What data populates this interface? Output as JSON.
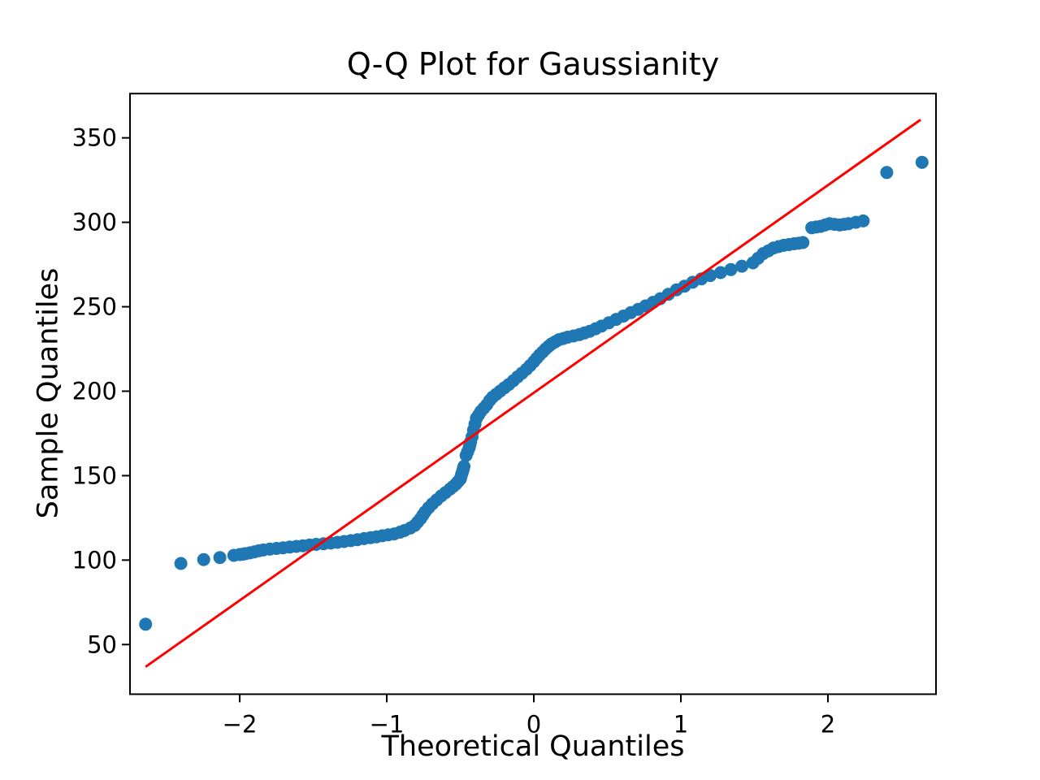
{
  "figure": {
    "background_color": "#ffffff"
  },
  "chart_data": {
    "type": "scatter",
    "title": "Q-Q Plot for Gaussianity",
    "xlabel": "Theoretical Quantiles",
    "ylabel": "Sample Quantiles",
    "xlim": [
      -2.746,
      2.735
    ],
    "ylim": [
      20.6,
      376.2
    ],
    "grid": false,
    "legend": "none",
    "x_ticks": {
      "values": [
        -2,
        -1,
        0,
        1,
        2
      ],
      "labels": [
        "−2",
        "−1",
        "0",
        "1",
        "2"
      ]
    },
    "y_ticks": {
      "values": [
        50,
        100,
        150,
        200,
        250,
        300,
        350
      ],
      "labels": [
        "50",
        "100",
        "150",
        "200",
        "250",
        "300",
        "350"
      ]
    },
    "marker_color": "#1f77b4",
    "line_color": "#ff0000",
    "axis_color": "#000000",
    "fit_line": {
      "x": [
        -2.64,
        2.63
      ],
      "y": [
        36.8,
        360.7
      ]
    },
    "series": [
      {
        "name": "sample-quantiles-vs-theoretical",
        "points": [
          [
            -2.64,
            62.0
          ],
          [
            -2.4,
            98.0
          ],
          [
            -2.245,
            100.3
          ],
          [
            -2.135,
            101.5
          ],
          [
            -2.04,
            102.8
          ],
          [
            -2.0,
            103.3
          ],
          [
            -1.98,
            103.5
          ],
          [
            -1.96,
            103.8
          ],
          [
            -1.93,
            104.3
          ],
          [
            -1.9,
            104.9
          ],
          [
            -1.87,
            105.5
          ],
          [
            -1.84,
            106.0
          ],
          [
            -1.795,
            106.5
          ],
          [
            -1.75,
            106.9
          ],
          [
            -1.705,
            107.3
          ],
          [
            -1.66,
            107.7
          ],
          [
            -1.615,
            108.1
          ],
          [
            -1.57,
            108.5
          ],
          [
            -1.525,
            108.9
          ],
          [
            -1.48,
            109.3
          ],
          [
            -1.43,
            109.7
          ],
          [
            -1.38,
            110.1
          ],
          [
            -1.335,
            110.5
          ],
          [
            -1.29,
            111.0
          ],
          [
            -1.245,
            111.5
          ],
          [
            -1.2,
            112.1
          ],
          [
            -1.155,
            112.7
          ],
          [
            -1.11,
            113.3
          ],
          [
            -1.07,
            113.8
          ],
          [
            -1.03,
            114.4
          ],
          [
            -0.99,
            115.0
          ],
          [
            -0.95,
            115.5
          ],
          [
            -0.91,
            116.5
          ],
          [
            -0.88,
            117.5
          ],
          [
            -0.84,
            119.0
          ],
          [
            -0.81,
            120.5
          ],
          [
            -0.79,
            122.5
          ],
          [
            -0.77,
            124.5
          ],
          [
            -0.755,
            126.5
          ],
          [
            -0.74,
            128.5
          ],
          [
            -0.715,
            131.0
          ],
          [
            -0.69,
            133.3
          ],
          [
            -0.66,
            135.6
          ],
          [
            -0.63,
            138.0
          ],
          [
            -0.6,
            140.0
          ],
          [
            -0.57,
            142.0
          ],
          [
            -0.55,
            143.5
          ],
          [
            -0.53,
            145.0
          ],
          [
            -0.515,
            146.5
          ],
          [
            -0.5,
            148.0
          ],
          [
            -0.495,
            149.5
          ],
          [
            -0.49,
            151.0
          ],
          [
            -0.485,
            152.3
          ],
          [
            -0.48,
            153.8
          ],
          [
            -0.475,
            155.5
          ],
          [
            -0.46,
            162.0
          ],
          [
            -0.45,
            164.2
          ],
          [
            -0.44,
            166.5
          ],
          [
            -0.435,
            168.2
          ],
          [
            -0.43,
            170.0
          ],
          [
            -0.42,
            173.0
          ],
          [
            -0.41,
            177.0
          ],
          [
            -0.4,
            180.5
          ],
          [
            -0.39,
            184.0
          ],
          [
            -0.375,
            186.0
          ],
          [
            -0.36,
            188.0
          ],
          [
            -0.34,
            190.0
          ],
          [
            -0.32,
            192.0
          ],
          [
            -0.3,
            194.5
          ],
          [
            -0.28,
            196.5
          ],
          [
            -0.255,
            198.2
          ],
          [
            -0.23,
            200.0
          ],
          [
            -0.2,
            202.0
          ],
          [
            -0.17,
            204.0
          ],
          [
            -0.14,
            206.2
          ],
          [
            -0.11,
            208.5
          ],
          [
            -0.08,
            210.7
          ],
          [
            -0.05,
            213.0
          ],
          [
            -0.025,
            215.2
          ],
          [
            0.0,
            217.5
          ],
          [
            0.02,
            219.5
          ],
          [
            0.04,
            221.5
          ],
          [
            0.06,
            223.2
          ],
          [
            0.08,
            225.0
          ],
          [
            0.1,
            226.5
          ],
          [
            0.12,
            228.0
          ],
          [
            0.145,
            229.2
          ],
          [
            0.17,
            230.5
          ],
          [
            0.2,
            231.2
          ],
          [
            0.23,
            232.0
          ],
          [
            0.27,
            232.7
          ],
          [
            0.31,
            233.5
          ],
          [
            0.345,
            234.5
          ],
          [
            0.38,
            235.5
          ],
          [
            0.42,
            237.0
          ],
          [
            0.46,
            238.5
          ],
          [
            0.51,
            240.5
          ],
          [
            0.56,
            242.5
          ],
          [
            0.61,
            244.5
          ],
          [
            0.66,
            246.5
          ],
          [
            0.71,
            248.5
          ],
          [
            0.76,
            250.5
          ],
          [
            0.81,
            252.6
          ],
          [
            0.86,
            254.8
          ],
          [
            0.915,
            257.4
          ],
          [
            0.97,
            260.0
          ],
          [
            1.025,
            262.2
          ],
          [
            1.08,
            264.5
          ],
          [
            1.14,
            266.5
          ],
          [
            1.2,
            268.5
          ],
          [
            1.27,
            270.2
          ],
          [
            1.34,
            272.0
          ],
          [
            1.415,
            274.0
          ],
          [
            1.49,
            276.0
          ],
          [
            1.525,
            278.7
          ],
          [
            1.56,
            281.5
          ],
          [
            1.595,
            283.1
          ],
          [
            1.63,
            284.8
          ],
          [
            1.665,
            285.6
          ],
          [
            1.7,
            286.4
          ],
          [
            1.735,
            286.8
          ],
          [
            1.77,
            287.3
          ],
          [
            1.8,
            287.6
          ],
          [
            1.83,
            288.0
          ],
          [
            1.89,
            296.8
          ],
          [
            1.92,
            297.2
          ],
          [
            1.95,
            297.6
          ],
          [
            1.98,
            298.4
          ],
          [
            2.01,
            299.2
          ],
          [
            2.045,
            298.8
          ],
          [
            2.08,
            298.4
          ],
          [
            2.11,
            298.8
          ],
          [
            2.14,
            299.2
          ],
          [
            2.19,
            300.0
          ],
          [
            2.24,
            300.8
          ],
          [
            2.4,
            329.5
          ],
          [
            2.64,
            335.5
          ]
        ]
      }
    ]
  }
}
